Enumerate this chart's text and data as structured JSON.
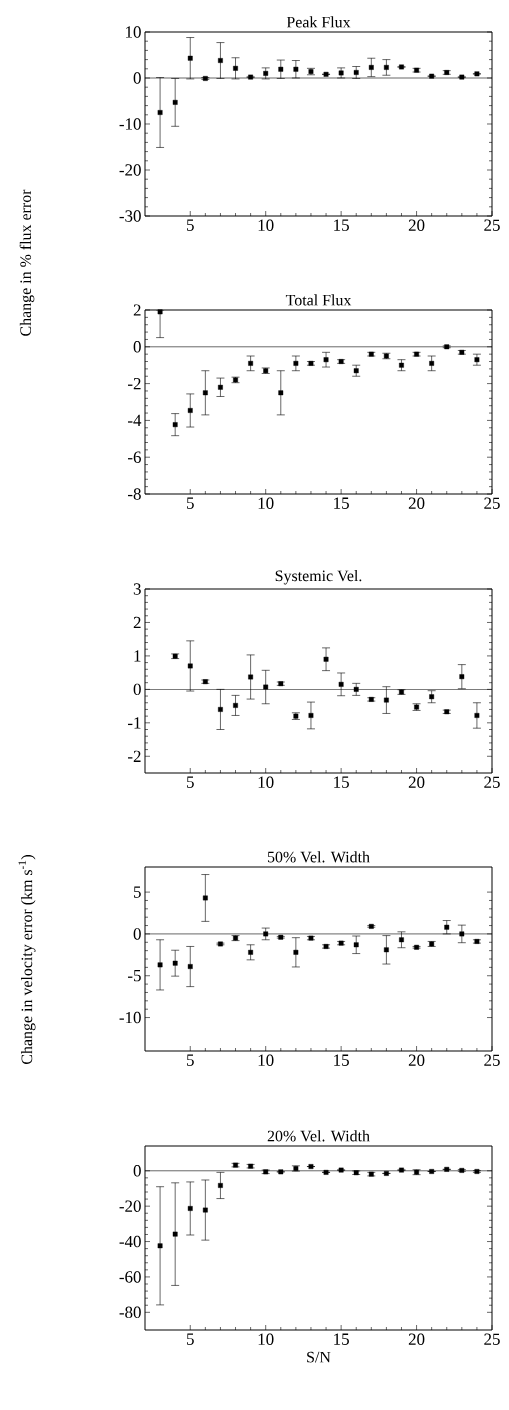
{
  "chart_data": [
    {
      "type": "scatter",
      "title": "Peak Flux",
      "ylabel": "Change in % flux error",
      "color": "#000000",
      "marker": "square",
      "grid": false,
      "x": [
        3,
        4,
        5,
        6,
        7,
        8,
        9,
        10,
        11,
        12,
        13,
        14,
        15,
        16,
        17,
        18,
        19,
        20,
        21,
        22,
        23,
        24
      ],
      "values": [
        -7.5,
        -5.3,
        4.3,
        -0.1,
        3.8,
        2.1,
        0.2,
        1.0,
        1.9,
        1.9,
        1.4,
        0.8,
        1.1,
        1.2,
        2.3,
        2.3,
        2.4,
        1.7,
        0.4,
        1.2,
        0.2,
        0.9
      ],
      "errors": [
        7.6,
        5.2,
        4.5,
        0.2,
        3.9,
        2.3,
        null,
        1.2,
        2.0,
        1.9,
        0.7,
        null,
        1.1,
        1.3,
        2.0,
        1.7,
        null,
        0.4,
        null,
        0.4,
        null,
        null
      ],
      "xlim": [
        2,
        25
      ],
      "ylim": [
        -30,
        10
      ],
      "xticks": [
        5,
        10,
        15,
        20,
        25
      ],
      "yticks": [
        -30,
        -20,
        -10,
        0,
        10
      ],
      "ref_lines": [
        {
          "axis": "y",
          "value": 0
        }
      ]
    },
    {
      "type": "scatter",
      "title": "Total Flux",
      "color": "#000000",
      "marker": "square",
      "grid": false,
      "x": [
        3,
        4,
        5,
        6,
        7,
        8,
        9,
        10,
        11,
        12,
        13,
        14,
        15,
        16,
        17,
        18,
        19,
        20,
        21,
        22,
        23,
        24
      ],
      "values": [
        1.9,
        -4.23,
        -3.46,
        -2.5,
        -2.2,
        -1.8,
        -0.9,
        -1.3,
        -2.5,
        -0.9,
        -0.9,
        -0.7,
        -0.8,
        -1.3,
        -0.4,
        -0.5,
        -1.0,
        -0.4,
        -0.9,
        0.0,
        -0.3,
        -0.7
      ],
      "errors": [
        [
          0.5,
          2
        ],
        0.6,
        0.9,
        1.2,
        0.5,
        0.15,
        0.4,
        0.15,
        1.2,
        0.4,
        0.1,
        0.4,
        0.1,
        0.3,
        0.1,
        0.15,
        0.3,
        0.1,
        0.4,
        0.05,
        0.1,
        0.3
      ],
      "xlim": [
        2,
        25
      ],
      "ylim": [
        -8,
        2
      ],
      "xticks": [
        5,
        10,
        15,
        20,
        25
      ],
      "yticks": [
        -8,
        -6,
        -4,
        -2,
        0,
        2
      ],
      "ref_lines": [
        {
          "axis": "y",
          "value": 0
        }
      ]
    },
    {
      "type": "scatter",
      "title": "Systemic Vel.",
      "ylabel": "Change in velocity error (km s$^{-1}$)",
      "color": "#000000",
      "marker": "square",
      "grid": false,
      "x": [
        4,
        5,
        6,
        7,
        8,
        9,
        10,
        11,
        12,
        13,
        14,
        15,
        16,
        17,
        18,
        19,
        20,
        21,
        22,
        23,
        24
      ],
      "values": [
        0.99,
        0.7,
        0.23,
        -0.6,
        -0.48,
        0.37,
        0.07,
        0.17,
        -0.8,
        -0.78,
        0.9,
        0.15,
        0.0,
        -0.3,
        -0.32,
        -0.08,
        -0.53,
        -0.22,
        -0.67,
        0.38,
        -0.78
      ],
      "errors": [
        0.07,
        0.75,
        0.05,
        0.6,
        0.3,
        0.66,
        0.5,
        0.05,
        0.1,
        0.4,
        0.34,
        0.34,
        0.18,
        0.05,
        0.4,
        0.07,
        0.1,
        0.18,
        0.05,
        0.36,
        0.38
      ],
      "xlim": [
        2,
        25
      ],
      "ylim": [
        -2.5,
        3
      ],
      "xticks": [
        5,
        10,
        15,
        20,
        25
      ],
      "yticks": [
        -2,
        -1,
        0,
        1,
        2,
        3
      ],
      "ref_lines": [
        {
          "axis": "y",
          "value": 0
        }
      ]
    },
    {
      "type": "scatter",
      "title": "50% Vel. Width",
      "color": "#000000",
      "marker": "square",
      "grid": false,
      "x": [
        3,
        4,
        5,
        6,
        7,
        8,
        9,
        10,
        11,
        12,
        13,
        14,
        15,
        16,
        17,
        18,
        19,
        20,
        21,
        22,
        23,
        24
      ],
      "values": [
        -3.7,
        -3.5,
        -3.9,
        4.3,
        -1.2,
        -0.5,
        -2.2,
        0.0,
        -0.4,
        -2.2,
        -0.5,
        -1.5,
        -1.1,
        -1.3,
        0.9,
        -1.9,
        -0.7,
        -1.6,
        -1.2,
        0.8,
        0.0,
        -0.9
      ],
      "errors": [
        3.0,
        1.55,
        2.4,
        2.8,
        0.1,
        0.3,
        0.9,
        0.7,
        0.1,
        1.75,
        0.2,
        0.2,
        0.2,
        1.05,
        0.1,
        1.7,
        0.95,
        0.1,
        0.3,
        0.8,
        1.05,
        0.2
      ],
      "xlim": [
        2,
        25
      ],
      "ylim": [
        -14,
        8
      ],
      "xticks": [
        5,
        10,
        15,
        20,
        25
      ],
      "yticks": [
        -10,
        -5,
        0,
        5
      ],
      "ref_lines": [
        {
          "axis": "y",
          "value": 0
        }
      ]
    },
    {
      "type": "scatter",
      "title": "20% Vel. Width",
      "xlabel": "S/N",
      "color": "#000000",
      "marker": "square",
      "grid": false,
      "x": [
        3,
        4,
        5,
        6,
        7,
        8,
        9,
        10,
        11,
        12,
        13,
        14,
        15,
        16,
        17,
        18,
        19,
        20,
        21,
        22,
        23,
        24
      ],
      "values": [
        -42.4,
        -35.8,
        -21.3,
        -22.2,
        -8.3,
        3.2,
        2.6,
        -0.6,
        -0.6,
        1.3,
        2.4,
        -0.9,
        0.4,
        -1.1,
        -1.9,
        -1.5,
        0.4,
        -0.8,
        -0.4,
        0.8,
        0.2,
        -0.4
      ],
      "errors": [
        33.4,
        29,
        15,
        17,
        7.4,
        1,
        1,
        1,
        null,
        1.5,
        null,
        null,
        null,
        1,
        1,
        null,
        null,
        1.4,
        null,
        null,
        0.5,
        0.5
      ],
      "xlim": [
        2,
        25
      ],
      "ylim": [
        -90,
        14
      ],
      "xticks": [
        5,
        10,
        15,
        20,
        25
      ],
      "yticks": [
        -80,
        -60,
        -40,
        -20,
        0
      ],
      "ref_lines": [
        {
          "axis": "y",
          "value": 0
        }
      ]
    }
  ]
}
